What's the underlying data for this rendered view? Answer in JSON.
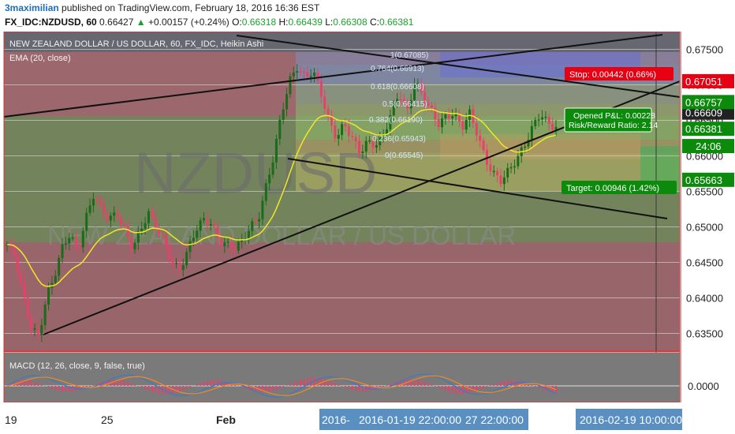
{
  "header": {
    "author": "3maximilian",
    "published_text": "published on TradingView.com, February 18, 2016 16:36 EST",
    "symbol": "FX_IDC:NZDUSD, 60",
    "last": "0.66427",
    "change_arrow": "▲",
    "change": "+0.00157 (+0.24%)",
    "o_label": "O:",
    "o": "0.66318",
    "h_label": "H:",
    "h": "0.66439",
    "l_label": "L:",
    "l": "0.66308",
    "c_label": "C:",
    "c": "0.66381"
  },
  "pane": {
    "title": "NEW ZEALAND DOLLAR / US DOLLAR, 60, FX_IDC, Heikin Ashi",
    "ema_label": "EMA (20, close)",
    "watermark_symbol": "NZDUSD",
    "watermark_name": "NEW ZEALAND DOLLAR / US DOLLAR",
    "macd_label": "MACD (12, 26, close, 9, false, true)"
  },
  "position": {
    "stop": "Stop: 0.00442 (0.66%)",
    "pnl": "Opened P&L: 0.00228",
    "rr": "Risk/Reward Ratio: 2.14",
    "target": "Target: 0.00946 (1.42%)"
  },
  "fib_labels": [
    "1(0.67085)",
    "0.764(0.66913)",
    "0.618(0.66608)",
    "0.5(0.66415)",
    "0.382(0.66190)",
    "0.236(0.65943)",
    "0(0.65545)"
  ],
  "colors": {
    "up": "#1a6b1a",
    "down": "#e8406a",
    "ema": "#f0e62a",
    "macd": "#3a7ac8",
    "signal": "#f08a24",
    "price_red": "#e60012",
    "price_green": "#0c8a0c",
    "price_black": "#222222"
  },
  "chart_data": {
    "type": "candlestick",
    "style": "Heikin Ashi",
    "interval": "60",
    "price_axis": {
      "ylim": [
        0.6325,
        0.6775
      ],
      "ticks": [
        "0.67500",
        "0.67000",
        "0.66500",
        "0.66000",
        "0.65500",
        "0.65000",
        "0.64500",
        "0.64000",
        "0.63500"
      ]
    },
    "price_labels": [
      {
        "text": "0.67051",
        "value": 0.67051,
        "color": "red"
      },
      {
        "text": "0.66609",
        "value": 0.66609,
        "color": "black"
      },
      {
        "text": "0.66757",
        "value": 0.66757,
        "color": "green"
      },
      {
        "text": "0.66381",
        "value": 0.66381,
        "color": "green"
      },
      {
        "text": "24:06",
        "value": 0.66138,
        "color": "green"
      },
      {
        "text": "0.65663",
        "value": 0.65663,
        "color": "green"
      }
    ],
    "macd_axis": {
      "ticks": [
        "0.0000"
      ]
    },
    "time_axis": {
      "ticks": [
        "19",
        "25",
        "Feb",
        "2016-01-19 22:00:00",
        "2016-02-19 10:00:00"
      ],
      "tick_labels_shown": [
        "19",
        "25",
        "Feb",
        "2016-",
        "2016-01-19 22:00:00",
        "27 22:00:00",
        "2016-02-19 10:00:00"
      ]
    },
    "ema_period": 20,
    "price_path": [
      [
        0,
        0.6475
      ],
      [
        3,
        0.646
      ],
      [
        6,
        0.6405
      ],
      [
        9,
        0.636
      ],
      [
        12,
        0.6345
      ],
      [
        15,
        0.64
      ],
      [
        18,
        0.643
      ],
      [
        21,
        0.647
      ],
      [
        24,
        0.649
      ],
      [
        27,
        0.6465
      ],
      [
        30,
        0.651
      ],
      [
        33,
        0.6545
      ],
      [
        36,
        0.6525
      ],
      [
        39,
        0.651
      ],
      [
        42,
        0.652
      ],
      [
        45,
        0.6495
      ],
      [
        48,
        0.647
      ],
      [
        51,
        0.6495
      ],
      [
        54,
        0.652
      ],
      [
        57,
        0.65
      ],
      [
        60,
        0.648
      ],
      [
        63,
        0.645
      ],
      [
        66,
        0.644
      ],
      [
        69,
        0.6465
      ],
      [
        72,
        0.6495
      ],
      [
        75,
        0.651
      ],
      [
        78,
        0.6505
      ],
      [
        81,
        0.648
      ],
      [
        84,
        0.6475
      ],
      [
        87,
        0.647
      ],
      [
        90,
        0.648
      ],
      [
        93,
        0.65
      ],
      [
        96,
        0.651
      ],
      [
        99,
        0.6555
      ],
      [
        102,
        0.66
      ],
      [
        105,
        0.666
      ],
      [
        108,
        0.6705
      ],
      [
        111,
        0.6725
      ],
      [
        114,
        0.671
      ],
      [
        117,
        0.672
      ],
      [
        120,
        0.669
      ],
      [
        123,
        0.665
      ],
      [
        126,
        0.6625
      ],
      [
        129,
        0.6645
      ],
      [
        132,
        0.6625
      ],
      [
        135,
        0.6605
      ],
      [
        138,
        0.662
      ],
      [
        141,
        0.6615
      ],
      [
        144,
        0.663
      ],
      [
        147,
        0.666
      ],
      [
        150,
        0.669
      ],
      [
        153,
        0.666
      ],
      [
        156,
        0.6705
      ],
      [
        159,
        0.6685
      ],
      [
        162,
        0.6665
      ],
      [
        165,
        0.6645
      ],
      [
        168,
        0.6655
      ],
      [
        171,
        0.666
      ],
      [
        174,
        0.664
      ],
      [
        177,
        0.666
      ],
      [
        180,
        0.663
      ],
      [
        183,
        0.6595
      ],
      [
        186,
        0.6575
      ],
      [
        189,
        0.6565
      ],
      [
        192,
        0.658
      ],
      [
        195,
        0.6595
      ],
      [
        198,
        0.6615
      ],
      [
        201,
        0.664
      ],
      [
        204,
        0.666
      ],
      [
        207,
        0.6645
      ],
      [
        210,
        0.664
      ]
    ]
  }
}
